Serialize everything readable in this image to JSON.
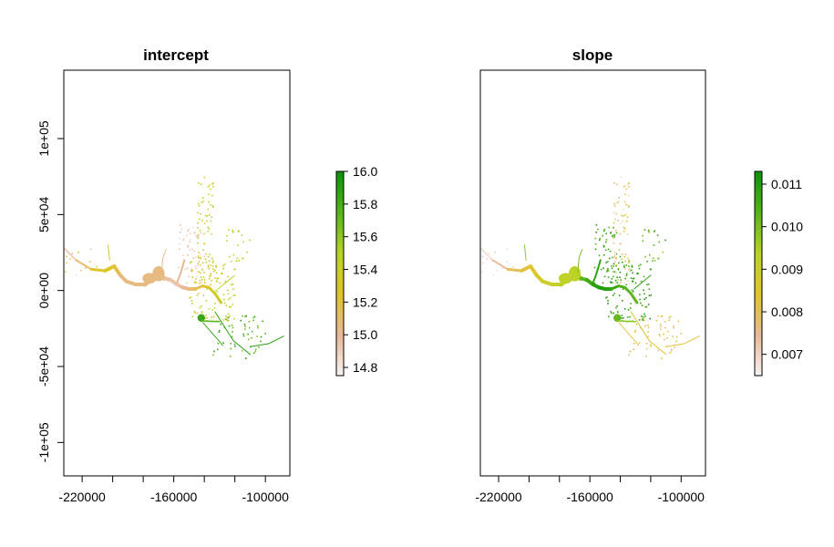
{
  "chart_data": [
    {
      "type": "heatmap",
      "title": "intercept",
      "xlabel": "",
      "ylabel": "",
      "xlim": [
        -232000,
        -84000
      ],
      "ylim": [
        -122000,
        145000
      ],
      "x_ticks": [
        -220000,
        -200000,
        -180000,
        -160000,
        -140000,
        -120000,
        -100000
      ],
      "x_tick_labels": [
        "-220000",
        "",
        "",
        "-160000",
        "",
        "",
        "-100000"
      ],
      "y_ticks": [
        -100000,
        -50000,
        0,
        50000,
        100000
      ],
      "y_tick_labels": [
        "-1e+05",
        "-5e+04",
        "0e+00",
        "5e+04",
        "1e+05"
      ],
      "colorbar": {
        "min": 14.75,
        "max": 16.0,
        "ticks": [
          14.8,
          15.0,
          15.2,
          15.4,
          15.6,
          15.8,
          16.0
        ],
        "tick_labels": [
          "14.8",
          "15.0",
          "15.2",
          "15.4",
          "15.6",
          "15.8",
          "16.0"
        ],
        "colors": [
          "#f8f3f3",
          "#e8b896",
          "#e0c42a",
          "#b8d426",
          "#56b41c",
          "#0b930b"
        ]
      },
      "grid": false,
      "legend": "right",
      "features": [
        {
          "kind": "main-stem",
          "points": [
            [
              -232000,
              28000
            ],
            [
              -224000,
              20000
            ],
            [
              -214000,
              14000
            ],
            [
              -205000,
              13000
            ],
            [
              -199000,
              16000
            ],
            [
              -195000,
              10000
            ],
            [
              -191000,
              6000
            ],
            [
              -185000,
              4000
            ],
            [
              -179000,
              4000
            ],
            [
              -175000,
              7000
            ],
            [
              -170000,
              9000
            ],
            [
              -166000,
              8000
            ],
            [
              -162000,
              7000
            ],
            [
              -158000,
              4000
            ],
            [
              -154000,
              2000
            ],
            [
              -150000,
              1000
            ],
            [
              -146000,
              1000
            ],
            [
              -141000,
              3000
            ],
            [
              -137000,
              2000
            ],
            [
              -133000,
              -2000
            ],
            [
              -129000,
              -8000
            ]
          ],
          "values": [
            14.9,
            14.9,
            15.3,
            15.25,
            15.3,
            15.05,
            15.05,
            15.05,
            15.05,
            15.05,
            15.05,
            15.0,
            14.95,
            14.95,
            14.95,
            15.05,
            15.1,
            15.2,
            15.3,
            15.35,
            15.4
          ],
          "width": [
            2,
            2,
            3,
            4,
            4,
            4,
            4,
            4,
            5,
            5,
            5,
            4,
            4,
            4,
            4,
            4,
            3,
            3,
            3,
            3,
            3
          ]
        },
        {
          "kind": "blob",
          "x": -170000,
          "y": 11000,
          "rx": 4000,
          "ry": 5000,
          "value": 15.05
        },
        {
          "kind": "blob",
          "x": -176000,
          "y": 8000,
          "rx": 4500,
          "ry": 3500,
          "value": 15.05
        },
        {
          "kind": "blob",
          "x": -142000,
          "y": -18000,
          "rx": 2500,
          "ry": 2500,
          "value": 15.85
        },
        {
          "kind": "seg",
          "points": [
            [
              -142000,
              -20000
            ],
            [
              -130000,
              -20500
            ]
          ],
          "value": 15.75,
          "width": 1.5
        },
        {
          "kind": "seg",
          "points": [
            [
              -141000,
              -21000
            ],
            [
              -128000,
              -36000
            ]
          ],
          "value": 15.85,
          "width": 1
        },
        {
          "kind": "seg",
          "points": [
            [
              -133000,
              -14000
            ],
            [
              -121000,
              -33000
            ],
            [
              -110000,
              -42000
            ]
          ],
          "value": 15.9,
          "width": 1
        },
        {
          "kind": "seg",
          "points": [
            [
              -110000,
              -37000
            ],
            [
              -98000,
              -35000
            ],
            [
              -88000,
              -30000
            ]
          ],
          "value": 15.9,
          "width": 1
        },
        {
          "kind": "seg",
          "points": [
            [
              -246000,
              -12000
            ],
            [
              -240000,
              -12500
            ]
          ],
          "value": 14.95,
          "width": 1.5
        },
        {
          "kind": "seg",
          "points": [
            [
              -153000,
              20000
            ],
            [
              -156000,
              10000
            ],
            [
              -158000,
              5000
            ]
          ],
          "value": 15.0,
          "width": 2
        },
        {
          "kind": "seg",
          "points": [
            [
              -168000,
              12000
            ],
            [
              -167000,
              22000
            ],
            [
              -165000,
              27000
            ]
          ],
          "value": 15.05,
          "width": 1
        },
        {
          "kind": "seg",
          "points": [
            [
              -202000,
              20000
            ],
            [
              -203000,
              30000
            ]
          ],
          "value": 15.35,
          "width": 1
        },
        {
          "kind": "seg",
          "points": [
            [
              -131000,
              1000
            ],
            [
              -120000,
              10000
            ]
          ],
          "value": 15.5,
          "width": 1
        }
      ],
      "scatter": [
        {
          "x0": -145000,
          "x1": -134000,
          "y0": 5000,
          "y1": 75000,
          "n": 70,
          "vmin": 15.2,
          "vmax": 15.5,
          "seed": 3
        },
        {
          "x0": -158000,
          "x1": -140000,
          "y0": 2000,
          "y1": 45000,
          "n": 55,
          "vmin": 14.85,
          "vmax": 15.0,
          "seed": 11
        },
        {
          "x0": -150000,
          "x1": -120000,
          "y0": -20000,
          "y1": 20000,
          "n": 110,
          "vmin": 15.25,
          "vmax": 15.5,
          "seed": 19
        },
        {
          "x0": -135000,
          "x1": -100000,
          "y0": -45000,
          "y1": -15000,
          "n": 55,
          "vmin": 15.6,
          "vmax": 15.95,
          "seed": 23
        },
        {
          "x0": -126000,
          "x1": -110000,
          "y0": 20000,
          "y1": 42000,
          "n": 20,
          "vmin": 15.35,
          "vmax": 15.5,
          "seed": 29
        },
        {
          "x0": -240000,
          "x1": -210000,
          "y0": 10000,
          "y1": 28000,
          "n": 15,
          "vmin": 14.85,
          "vmax": 15.35,
          "seed": 31
        }
      ]
    },
    {
      "type": "heatmap",
      "title": "slope",
      "xlabel": "",
      "ylabel": "",
      "xlim": [
        -232000,
        -84000
      ],
      "ylim": [
        -122000,
        145000
      ],
      "x_ticks": [
        -220000,
        -200000,
        -180000,
        -160000,
        -140000,
        -120000,
        -100000
      ],
      "x_tick_labels": [
        "-220000",
        "",
        "",
        "-160000",
        "",
        "",
        "-100000"
      ],
      "y_ticks": [],
      "y_tick_labels": [],
      "colorbar": {
        "min": 0.0065,
        "max": 0.0113,
        "ticks": [
          0.007,
          0.008,
          0.009,
          0.01,
          0.011
        ],
        "tick_labels": [
          "0.007",
          "0.008",
          "0.009",
          "0.010",
          "0.011"
        ],
        "colors": [
          "#f8f3f3",
          "#e8b896",
          "#e0c42a",
          "#b8d426",
          "#56b41c",
          "#0b930b"
        ]
      },
      "grid": false,
      "legend": "right",
      "features": [
        {
          "kind": "main-stem",
          "points": [
            [
              -232000,
              28000
            ],
            [
              -224000,
              20000
            ],
            [
              -214000,
              14000
            ],
            [
              -205000,
              13000
            ],
            [
              -199000,
              16000
            ],
            [
              -195000,
              10000
            ],
            [
              -191000,
              6000
            ],
            [
              -185000,
              4000
            ],
            [
              -179000,
              4000
            ],
            [
              -175000,
              7000
            ],
            [
              -170000,
              9000
            ],
            [
              -166000,
              8000
            ],
            [
              -162000,
              7000
            ],
            [
              -158000,
              4000
            ],
            [
              -154000,
              2000
            ],
            [
              -150000,
              1000
            ],
            [
              -146000,
              1000
            ],
            [
              -141000,
              3000
            ],
            [
              -137000,
              2000
            ],
            [
              -133000,
              -2000
            ],
            [
              -129000,
              -8000
            ]
          ],
          "values": [
            0.0068,
            0.0068,
            0.0079,
            0.0081,
            0.0084,
            0.0086,
            0.0088,
            0.009,
            0.0092,
            0.0094,
            0.0096,
            0.01,
            0.0105,
            0.0108,
            0.011,
            0.0111,
            0.0108,
            0.0106,
            0.0104,
            0.0103,
            0.0102
          ],
          "width": [
            2,
            2,
            3,
            4,
            4,
            4,
            4,
            4,
            5,
            5,
            5,
            4,
            4,
            4,
            4,
            4,
            3,
            3,
            3,
            3,
            3
          ]
        },
        {
          "kind": "blob",
          "x": -170000,
          "y": 11000,
          "rx": 4000,
          "ry": 5000,
          "value": 0.0093
        },
        {
          "kind": "blob",
          "x": -176000,
          "y": 8000,
          "rx": 4500,
          "ry": 3500,
          "value": 0.0092
        },
        {
          "kind": "blob",
          "x": -142000,
          "y": -18000,
          "rx": 2500,
          "ry": 2500,
          "value": 0.0102
        },
        {
          "kind": "seg",
          "points": [
            [
              -142000,
              -20000
            ],
            [
              -130000,
              -20500
            ]
          ],
          "value": 0.0098,
          "width": 1.5
        },
        {
          "kind": "seg",
          "points": [
            [
              -141000,
              -21000
            ],
            [
              -128000,
              -36000
            ]
          ],
          "value": 0.0082,
          "width": 1
        },
        {
          "kind": "seg",
          "points": [
            [
              -133000,
              -14000
            ],
            [
              -121000,
              -33000
            ],
            [
              -110000,
              -42000
            ]
          ],
          "value": 0.0084,
          "width": 1
        },
        {
          "kind": "seg",
          "points": [
            [
              -110000,
              -37000
            ],
            [
              -98000,
              -35000
            ],
            [
              -88000,
              -30000
            ]
          ],
          "value": 0.0082,
          "width": 1
        },
        {
          "kind": "seg",
          "points": [
            [
              -246000,
              -12000
            ],
            [
              -240000,
              -12500
            ]
          ],
          "value": 0.0094,
          "width": 1.5
        },
        {
          "kind": "seg",
          "points": [
            [
              -153000,
              20000
            ],
            [
              -156000,
              10000
            ],
            [
              -158000,
              5000
            ]
          ],
          "value": 0.0108,
          "width": 2
        },
        {
          "kind": "seg",
          "points": [
            [
              -168000,
              12000
            ],
            [
              -167000,
              22000
            ],
            [
              -165000,
              27000
            ]
          ],
          "value": 0.01,
          "width": 1
        },
        {
          "kind": "seg",
          "points": [
            [
              -202000,
              20000
            ],
            [
              -203000,
              30000
            ]
          ],
          "value": 0.0098,
          "width": 1
        },
        {
          "kind": "seg",
          "points": [
            [
              -131000,
              1000
            ],
            [
              -120000,
              10000
            ]
          ],
          "value": 0.0109,
          "width": 1
        }
      ],
      "scatter": [
        {
          "x0": -145000,
          "x1": -134000,
          "y0": 5000,
          "y1": 75000,
          "n": 70,
          "vmin": 0.0068,
          "vmax": 0.0088,
          "seed": 3
        },
        {
          "x0": -158000,
          "x1": -140000,
          "y0": 2000,
          "y1": 45000,
          "n": 55,
          "vmin": 0.0102,
          "vmax": 0.0111,
          "seed": 11
        },
        {
          "x0": -150000,
          "x1": -120000,
          "y0": -20000,
          "y1": 20000,
          "n": 110,
          "vmin": 0.0104,
          "vmax": 0.0112,
          "seed": 19
        },
        {
          "x0": -135000,
          "x1": -100000,
          "y0": -45000,
          "y1": -15000,
          "n": 55,
          "vmin": 0.0075,
          "vmax": 0.0088,
          "seed": 23
        },
        {
          "x0": -126000,
          "x1": -110000,
          "y0": 20000,
          "y1": 42000,
          "n": 20,
          "vmin": 0.0098,
          "vmax": 0.0108,
          "seed": 29
        },
        {
          "x0": -240000,
          "x1": -210000,
          "y0": 10000,
          "y1": 28000,
          "n": 15,
          "vmin": 0.0068,
          "vmax": 0.0072,
          "seed": 31
        }
      ]
    }
  ]
}
